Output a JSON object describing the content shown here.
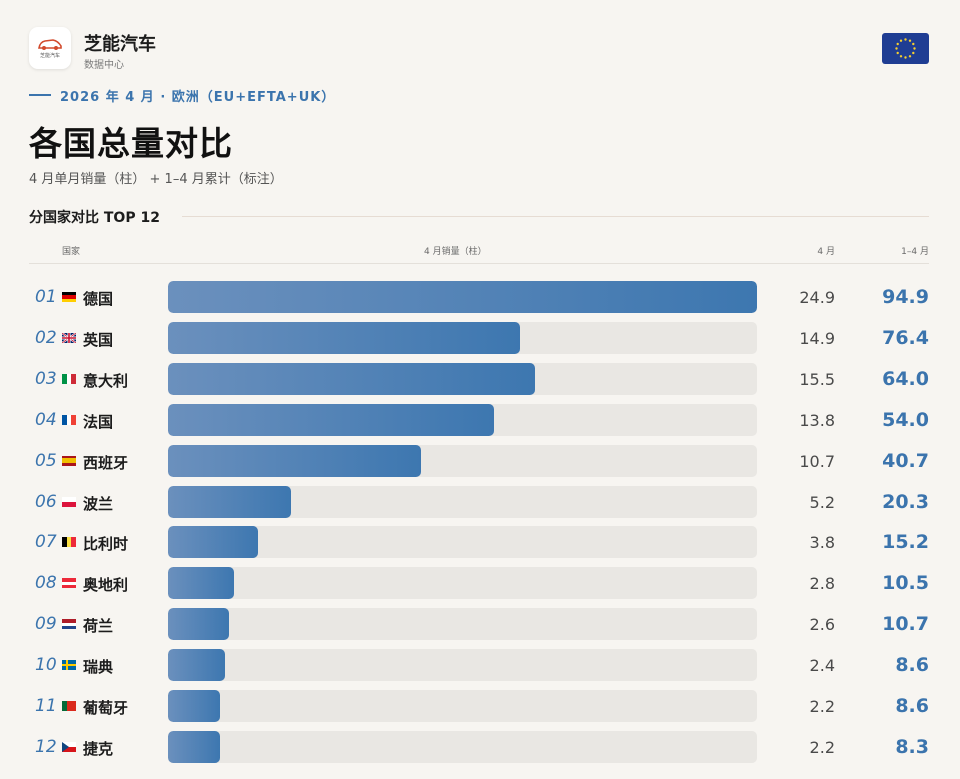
{
  "brand": {
    "name": "芝能汽车",
    "sub": "数据中心",
    "logo_text": "芝能汽车"
  },
  "kicker": "2026 年 4 月 · 欧洲（EU+EFTA+UK）",
  "title": "各国总量对比",
  "subtitle": "4 月单月销量（柱） + 1–4 月累计（标注）",
  "section_title": "分国家对比 TOP 12",
  "colors": {
    "accent": "#3b74ad",
    "bar": "#4b80b5",
    "track": "#e9e7e3",
    "eu_blue": "#1f3d93",
    "eu_star": "#f6cf2e"
  },
  "chart_data": {
    "type": "bar",
    "orientation": "horizontal",
    "columns": {
      "country": "国家",
      "bar": "4 月销量（柱）",
      "month": "4 月",
      "cumulative": "1–4 月"
    },
    "xlim": [
      0,
      24.9
    ],
    "rows": [
      {
        "rank": "01",
        "flag": "de-flag",
        "country": "德国",
        "month": 24.9,
        "month_label": "24.9",
        "cumulative": "94.9"
      },
      {
        "rank": "02",
        "flag": "gb-flag",
        "country": "英国",
        "month": 14.9,
        "month_label": "14.9",
        "cumulative": "76.4"
      },
      {
        "rank": "03",
        "flag": "it-flag",
        "country": "意大利",
        "month": 15.5,
        "month_label": "15.5",
        "cumulative": "64.0"
      },
      {
        "rank": "04",
        "flag": "fr-flag",
        "country": "法国",
        "month": 13.8,
        "month_label": "13.8",
        "cumulative": "54.0"
      },
      {
        "rank": "05",
        "flag": "es-flag",
        "country": "西班牙",
        "month": 10.7,
        "month_label": "10.7",
        "cumulative": "40.7"
      },
      {
        "rank": "06",
        "flag": "pl-flag",
        "country": "波兰",
        "month": 5.2,
        "month_label": "5.2",
        "cumulative": "20.3"
      },
      {
        "rank": "07",
        "flag": "be-flag",
        "country": "比利时",
        "month": 3.8,
        "month_label": "3.8",
        "cumulative": "15.2"
      },
      {
        "rank": "08",
        "flag": "at-flag",
        "country": "奥地利",
        "month": 2.8,
        "month_label": "2.8",
        "cumulative": "10.5"
      },
      {
        "rank": "09",
        "flag": "nl-flag",
        "country": "荷兰",
        "month": 2.6,
        "month_label": "2.6",
        "cumulative": "10.7"
      },
      {
        "rank": "10",
        "flag": "se-flag",
        "country": "瑞典",
        "month": 2.4,
        "month_label": "2.4",
        "cumulative": "8.6"
      },
      {
        "rank": "11",
        "flag": "pt-flag",
        "country": "葡萄牙",
        "month": 2.2,
        "month_label": "2.2",
        "cumulative": "8.6"
      },
      {
        "rank": "12",
        "flag": "cz-flag",
        "country": "捷克",
        "month": 2.2,
        "month_label": "2.2",
        "cumulative": "8.3"
      }
    ]
  }
}
